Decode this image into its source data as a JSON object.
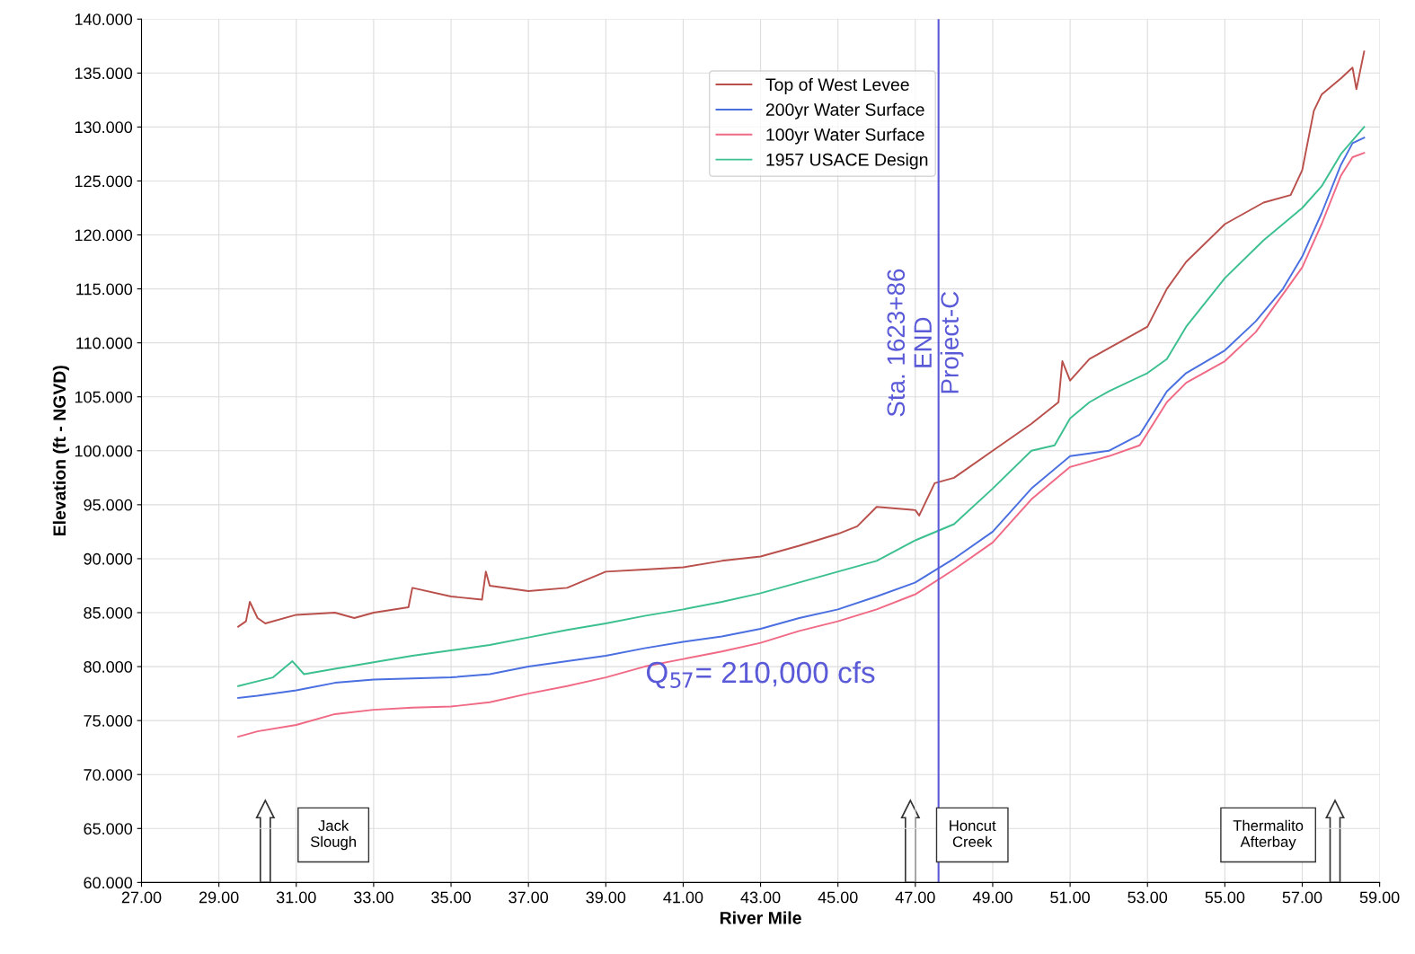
{
  "chart_data": {
    "type": "line",
    "xlabel": "River Mile",
    "ylabel": "Elevation (ft - NGVD)",
    "legend": "top",
    "grid": true,
    "line_style": "solid",
    "marker": "none",
    "xlim": [
      27,
      59
    ],
    "ylim": [
      60,
      140
    ],
    "xticks": [
      {
        "value": 27,
        "label": "27.00"
      },
      {
        "value": 29,
        "label": "29.00"
      },
      {
        "value": 31,
        "label": "31.00"
      },
      {
        "value": 33,
        "label": "33.00"
      },
      {
        "value": 35,
        "label": "35.00"
      },
      {
        "value": 37,
        "label": "37.00"
      },
      {
        "value": 39,
        "label": "39.00"
      },
      {
        "value": 41,
        "label": "41.00"
      },
      {
        "value": 43,
        "label": "43.00"
      },
      {
        "value": 45,
        "label": "45.00"
      },
      {
        "value": 47,
        "label": "47.00"
      },
      {
        "value": 49,
        "label": "49.00"
      },
      {
        "value": 51,
        "label": "51.00"
      },
      {
        "value": 53,
        "label": "53.00"
      },
      {
        "value": 55,
        "label": "55.00"
      },
      {
        "value": 57,
        "label": "57.00"
      },
      {
        "value": 59,
        "label": "59.00"
      }
    ],
    "yticks": [
      {
        "value": 60,
        "label": "60.000"
      },
      {
        "value": 65,
        "label": "65.000"
      },
      {
        "value": 70,
        "label": "70.000"
      },
      {
        "value": 75,
        "label": "75.000"
      },
      {
        "value": 80,
        "label": "80.000"
      },
      {
        "value": 85,
        "label": "85.000"
      },
      {
        "value": 90,
        "label": "90.000"
      },
      {
        "value": 95,
        "label": "95.000"
      },
      {
        "value": 100,
        "label": "100.000"
      },
      {
        "value": 105,
        "label": "105.000"
      },
      {
        "value": 110,
        "label": "110.000"
      },
      {
        "value": 115,
        "label": "115.000"
      },
      {
        "value": 120,
        "label": "120.000"
      },
      {
        "value": 125,
        "label": "125.000"
      },
      {
        "value": 130,
        "label": "130.000"
      },
      {
        "value": 135,
        "label": "135.000"
      },
      {
        "value": 140,
        "label": "140.000"
      }
    ],
    "series": [
      {
        "name": "Top of West Levee",
        "color": "#b9504c",
        "x": [
          29.5,
          29.7,
          29.8,
          30.0,
          30.2,
          31.0,
          32.0,
          32.5,
          33.0,
          33.9,
          34.0,
          35.0,
          35.8,
          35.9,
          36.0,
          37.0,
          38.0,
          39.0,
          40.0,
          41.0,
          42.0,
          43.0,
          44.0,
          45.0,
          45.5,
          46.0,
          47.0,
          47.1,
          47.5,
          48.0,
          49.0,
          50.0,
          50.7,
          50.8,
          51.0,
          51.5,
          52.0,
          53.0,
          53.5,
          54.0,
          55.0,
          56.0,
          56.7,
          57.0,
          57.3,
          57.5,
          58.0,
          58.3,
          58.4,
          58.6
        ],
        "values": [
          83.7,
          84.2,
          86,
          84.5,
          84,
          84.8,
          85,
          84.5,
          85,
          85.5,
          87.3,
          86.5,
          86.2,
          88.8,
          87.5,
          87,
          87.3,
          88.8,
          89,
          89.2,
          89.8,
          90.2,
          91.2,
          92.3,
          93,
          94.8,
          94.5,
          94,
          97,
          97.5,
          100,
          102.5,
          104.5,
          108.3,
          106.5,
          108.5,
          109.5,
          111.5,
          115,
          117.5,
          121,
          123,
          123.7,
          126,
          131.5,
          133,
          134.5,
          135.5,
          133.5,
          137
        ]
      },
      {
        "name": "200yr Water Surface",
        "color": "#4a6fe0",
        "x": [
          29.5,
          30,
          31,
          32,
          33,
          34,
          35,
          36,
          37,
          38,
          39,
          40,
          41,
          42,
          43,
          44,
          45,
          46,
          47,
          48,
          49,
          50,
          51,
          52,
          52.8,
          53.5,
          54,
          55,
          55.8,
          56.5,
          57,
          57.5,
          58,
          58.3,
          58.6
        ],
        "values": [
          77.1,
          77.3,
          77.8,
          78.5,
          78.8,
          78.9,
          79.0,
          79.3,
          80,
          80.5,
          81,
          81.7,
          82.3,
          82.8,
          83.5,
          84.5,
          85.3,
          86.5,
          87.8,
          90,
          92.5,
          96.5,
          99.5,
          100,
          101.5,
          105.5,
          107.2,
          109.3,
          112,
          115,
          118,
          122,
          126.5,
          128.5,
          129
        ]
      },
      {
        "name": "100yr Water Surface",
        "color": "#f06a85",
        "x": [
          29.5,
          30,
          31,
          32,
          33,
          34,
          35,
          36,
          37,
          38,
          39,
          40,
          41,
          42,
          43,
          44,
          45,
          46,
          47,
          48,
          49,
          50,
          51,
          52,
          52.8,
          53.5,
          54,
          55,
          55.8,
          56.5,
          57,
          57.5,
          58,
          58.3,
          58.6
        ],
        "values": [
          73.5,
          74,
          74.6,
          75.6,
          76,
          76.2,
          76.3,
          76.7,
          77.5,
          78.2,
          79,
          80,
          80.7,
          81.4,
          82.2,
          83.3,
          84.2,
          85.3,
          86.7,
          89,
          91.5,
          95.5,
          98.5,
          99.5,
          100.5,
          104.5,
          106.3,
          108.3,
          111,
          114.5,
          117,
          121,
          125.5,
          127.2,
          127.6
        ]
      },
      {
        "name": "1957 USACE Design",
        "color": "#3cc090",
        "x": [
          29.5,
          30.4,
          30.9,
          31.2,
          32,
          33,
          34,
          35,
          36,
          37,
          38,
          39,
          40,
          41,
          42,
          43,
          44,
          45,
          46,
          47,
          48,
          49,
          50,
          50.6,
          51,
          51.5,
          52,
          53,
          53.5,
          54,
          55,
          56,
          57,
          57.5,
          58,
          58.6
        ],
        "values": [
          78.2,
          79,
          80.5,
          79.3,
          79.8,
          80.4,
          81,
          81.5,
          82,
          82.7,
          83.4,
          84,
          84.7,
          85.3,
          86,
          86.8,
          87.8,
          88.8,
          89.8,
          91.7,
          93.2,
          96.5,
          100,
          100.5,
          103,
          104.5,
          105.5,
          107.2,
          108.5,
          111.5,
          116,
          119.5,
          122.5,
          124.5,
          127.5,
          130
        ]
      }
    ],
    "ref_lines": [
      {
        "axis": "x",
        "value": 47.6,
        "label": "Sta. 1623+86\nEND\nProject-C",
        "color": "#5a5ad8",
        "line_style": "solid"
      }
    ],
    "annotations": [
      "Jack\nSlough",
      "Honcut\nCreek",
      "Thermalito\nAfterbay",
      "Q$_{57}$= 210,000 cfs"
    ]
  }
}
